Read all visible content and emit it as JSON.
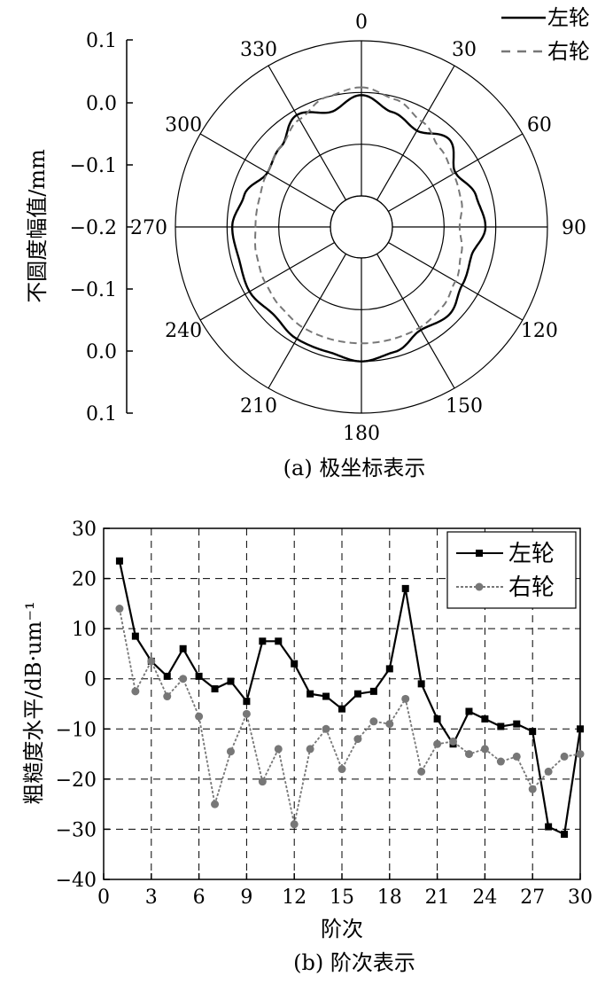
{
  "chart_data": [
    {
      "type": "polar-line",
      "caption": "(a) 极坐标表示",
      "ylabel": "不圆度幅值/mm",
      "radial_axis_ticks": [
        "0.1",
        "0.0",
        "−0.1",
        "−0.2",
        "−0.1",
        "0.0",
        "0.1"
      ],
      "radial_range": [
        -0.2,
        0.1
      ],
      "angle_ticks": [
        "0",
        "30",
        "60",
        "90",
        "120",
        "150",
        "180",
        "210",
        "240",
        "270",
        "300",
        "330"
      ],
      "legend": [
        "左轮",
        "右轮"
      ],
      "series": [
        {
          "name": "左轮",
          "style": "solid",
          "color": "#000000",
          "angles": [
            0,
            15,
            30,
            45,
            60,
            75,
            90,
            105,
            120,
            135,
            150,
            165,
            180,
            195,
            210,
            225,
            240,
            255,
            270,
            285,
            300,
            315,
            330,
            345
          ],
          "values": [
            -0.005,
            -0.03,
            -0.045,
            -0.02,
            -0.05,
            -0.03,
            -0.02,
            -0.04,
            -0.035,
            -0.02,
            -0.03,
            -0.01,
            0.0,
            -0.01,
            -0.01,
            -0.02,
            -0.01,
            -0.015,
            -0.01,
            -0.025,
            -0.05,
            -0.04,
            -0.01,
            -0.03
          ]
        },
        {
          "name": "右轮",
          "style": "dashed",
          "color": "#777777",
          "angles": [
            0,
            15,
            30,
            45,
            60,
            75,
            90,
            105,
            120,
            135,
            150,
            165,
            180,
            195,
            210,
            225,
            240,
            255,
            270,
            285,
            300,
            315,
            330,
            345
          ],
          "values": [
            0.01,
            -0.005,
            -0.025,
            -0.045,
            -0.055,
            -0.06,
            -0.07,
            -0.06,
            -0.05,
            -0.04,
            -0.035,
            -0.035,
            -0.035,
            -0.035,
            -0.035,
            -0.04,
            -0.045,
            -0.05,
            -0.055,
            -0.055,
            -0.05,
            -0.04,
            -0.02,
            0.0
          ]
        }
      ]
    },
    {
      "type": "line",
      "caption": "(b) 阶次表示",
      "xlabel": "阶次",
      "ylabel": "粗糙度水平/dB·um⁻¹",
      "xlim": [
        0,
        30
      ],
      "ylim": [
        -40,
        30
      ],
      "xticks": [
        0,
        3,
        6,
        9,
        12,
        15,
        18,
        21,
        24,
        27,
        30
      ],
      "yticks": [
        -40,
        -30,
        -20,
        -10,
        0,
        10,
        20,
        30
      ],
      "grid": true,
      "legend_position": "top-right",
      "series": [
        {
          "name": "左轮",
          "color": "#000000",
          "marker": "square",
          "x": [
            1,
            2,
            3,
            4,
            5,
            6,
            7,
            8,
            9,
            10,
            11,
            12,
            13,
            14,
            15,
            16,
            17,
            18,
            19,
            20,
            21,
            22,
            23,
            24,
            25,
            26,
            27,
            28,
            29,
            30
          ],
          "y": [
            23.5,
            8.5,
            3.5,
            0.5,
            6,
            0.5,
            -2,
            -0.5,
            -4.5,
            7.5,
            7.5,
            3,
            -3,
            -3.5,
            -6,
            -3,
            -2.5,
            2,
            18,
            -1,
            -8,
            -13,
            -6.5,
            -8,
            -9.5,
            -9,
            -10.5,
            -29.5,
            -31,
            -10
          ]
        },
        {
          "name": "右轮",
          "color": "#777777",
          "marker": "circle",
          "x": [
            1,
            2,
            3,
            4,
            5,
            6,
            7,
            8,
            9,
            10,
            11,
            12,
            13,
            14,
            15,
            16,
            17,
            18,
            19,
            20,
            21,
            22,
            23,
            24,
            25,
            26,
            27,
            28,
            29,
            30
          ],
          "y": [
            14,
            -2.5,
            3.5,
            -3.5,
            0,
            -7.5,
            -25,
            -14.5,
            -7,
            -20.5,
            -14,
            -29,
            -14,
            -10,
            -18,
            -12,
            -8.5,
            -9,
            -4,
            -18.5,
            -13,
            -12.5,
            -15,
            -14,
            -16.5,
            -15.5,
            -22,
            -18.5,
            -15.5,
            -15
          ]
        }
      ]
    }
  ]
}
